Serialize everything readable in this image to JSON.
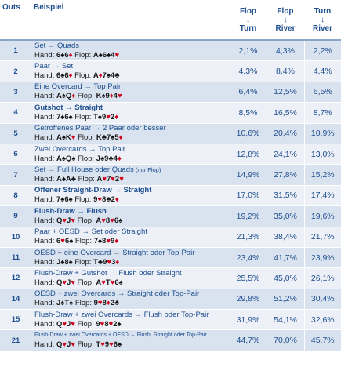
{
  "headers": {
    "outs": "Outs",
    "example": "Beispiel",
    "col1": {
      "top": "Flop",
      "arrow": "↓",
      "bottom": "Turn"
    },
    "col2": {
      "top": "Flop",
      "arrow": "↓",
      "bottom": "River"
    },
    "col3": {
      "top": "Turn",
      "arrow": "↓",
      "bottom": "River"
    }
  },
  "colors": {
    "header_text": "#1f4f8f",
    "row_odd": "#d9e2ef",
    "row_even": "#edf1f7",
    "red_suit": "#d0021b",
    "black_suit": "#111111"
  },
  "rows": [
    {
      "outs": "1",
      "line1": "Set → Quads",
      "line1_bold": false,
      "line1_small": false,
      "line1_note": "",
      "hand_label": "Hand: ",
      "hand": [
        {
          "r": "6",
          "s": "spade"
        },
        {
          "r": "6",
          "s": "diamond"
        }
      ],
      "flop_label": " Flop: ",
      "flop": [
        {
          "r": "A",
          "s": "spade"
        },
        {
          "r": "6",
          "s": "spade"
        },
        {
          "r": "4",
          "s": "heart"
        }
      ],
      "p1": "2,1%",
      "p2": "4,3%",
      "p3": "2,2%"
    },
    {
      "outs": "2",
      "line1": "Paar → Set",
      "line1_bold": false,
      "line1_small": false,
      "line1_note": "",
      "hand_label": "Hand: ",
      "hand": [
        {
          "r": "6",
          "s": "spade"
        },
        {
          "r": "6",
          "s": "diamond"
        }
      ],
      "flop_label": " Flop: ",
      "flop": [
        {
          "r": "A",
          "s": "diamond"
        },
        {
          "r": "7",
          "s": "spade"
        },
        {
          "r": "4",
          "s": "club"
        }
      ],
      "p1": "4,3%",
      "p2": "8,4%",
      "p3": "4,4%"
    },
    {
      "outs": "3",
      "line1": "Eine Overcard → Top Pair",
      "line1_bold": false,
      "line1_small": false,
      "line1_note": "",
      "hand_label": "Hand: ",
      "hand": [
        {
          "r": "A",
          "s": "spade"
        },
        {
          "r": "Q",
          "s": "diamond"
        }
      ],
      "flop_label": " Flop: ",
      "flop": [
        {
          "r": "K",
          "s": "spade"
        },
        {
          "r": "9",
          "s": "diamond"
        },
        {
          "r": "4",
          "s": "heart"
        }
      ],
      "p1": "6,4%",
      "p2": "12,5%",
      "p3": "6,5%"
    },
    {
      "outs": "4",
      "line1": "Gutshot → Straight",
      "line1_bold": true,
      "line1_small": false,
      "line1_note": "",
      "hand_label": "Hand: ",
      "hand": [
        {
          "r": "7",
          "s": "spade"
        },
        {
          "r": "6",
          "s": "spade"
        }
      ],
      "flop_label": " Flop: ",
      "flop": [
        {
          "r": "T",
          "s": "spade"
        },
        {
          "r": "9",
          "s": "heart"
        },
        {
          "r": "2",
          "s": "diamond"
        }
      ],
      "p1": "8,5%",
      "p2": "16,5%",
      "p3": "8,7%"
    },
    {
      "outs": "5",
      "line1": "Getroffenes Paar → 2 Paar oder besser",
      "line1_bold": false,
      "line1_small": false,
      "line1_note": "",
      "hand_label": "Hand: ",
      "hand": [
        {
          "r": "A",
          "s": "spade"
        },
        {
          "r": "K",
          "s": "heart"
        }
      ],
      "flop_label": " Flop: ",
      "flop": [
        {
          "r": "K",
          "s": "club"
        },
        {
          "r": "7",
          "s": "spade"
        },
        {
          "r": "5",
          "s": "diamond"
        }
      ],
      "p1": "10,6%",
      "p2": "20,4%",
      "p3": "10,9%"
    },
    {
      "outs": "6",
      "line1": "Zwei Overcards → Top Pair",
      "line1_bold": false,
      "line1_small": false,
      "line1_note": "",
      "hand_label": "Hand: ",
      "hand": [
        {
          "r": "A",
          "s": "spade"
        },
        {
          "r": "Q",
          "s": "spade"
        }
      ],
      "flop_label": " Flop: ",
      "flop": [
        {
          "r": "J",
          "s": "spade"
        },
        {
          "r": "9",
          "s": "club"
        },
        {
          "r": "4",
          "s": "diamond"
        }
      ],
      "p1": "12,8%",
      "p2": "24,1%",
      "p3": "13,0%"
    },
    {
      "outs": "7",
      "line1": "Set → Full House oder Quads",
      "line1_bold": false,
      "line1_small": false,
      "line1_note": " (nur Flop)",
      "hand_label": "Hand: ",
      "hand": [
        {
          "r": "A",
          "s": "spade"
        },
        {
          "r": "A",
          "s": "club"
        }
      ],
      "flop_label": " Flop: ",
      "flop": [
        {
          "r": "A",
          "s": "heart"
        },
        {
          "r": "7",
          "s": "heart"
        },
        {
          "r": "2",
          "s": "heart"
        }
      ],
      "p1": "14,9%",
      "p2": "27,8%",
      "p3": "15,2%"
    },
    {
      "outs": "8",
      "line1": "Offener Straight-Draw → Straight",
      "line1_bold": true,
      "line1_small": false,
      "line1_note": "",
      "hand_label": "Hand: ",
      "hand": [
        {
          "r": "7",
          "s": "spade"
        },
        {
          "r": "6",
          "s": "spade"
        }
      ],
      "flop_label": " Flop: ",
      "flop": [
        {
          "r": "9",
          "s": "heart"
        },
        {
          "r": "8",
          "s": "club"
        },
        {
          "r": "2",
          "s": "diamond"
        }
      ],
      "p1": "17,0%",
      "p2": "31,5%",
      "p3": "17,4%"
    },
    {
      "outs": "9",
      "line1": "Flush-Draw → Flush",
      "line1_bold": true,
      "line1_small": false,
      "line1_note": "",
      "hand_label": "Hand: ",
      "hand": [
        {
          "r": "Q",
          "s": "heart"
        },
        {
          "r": "J",
          "s": "heart"
        }
      ],
      "flop_label": " Flop: ",
      "flop": [
        {
          "r": "A",
          "s": "heart"
        },
        {
          "r": "8",
          "s": "heart"
        },
        {
          "r": "6",
          "s": "spade"
        }
      ],
      "p1": "19,2%",
      "p2": "35,0%",
      "p3": "19,6%"
    },
    {
      "outs": "10",
      "line1": "Paar + OESD → Set oder Straight",
      "line1_bold": false,
      "line1_small": false,
      "line1_note": "",
      "hand_label": "Hand: ",
      "hand": [
        {
          "r": "6",
          "s": "heart"
        },
        {
          "r": "6",
          "s": "spade"
        }
      ],
      "flop_label": " Flop: ",
      "flop": [
        {
          "r": "7",
          "s": "spade"
        },
        {
          "r": "8",
          "s": "heart"
        },
        {
          "r": "9",
          "s": "diamond"
        }
      ],
      "p1": "21,3%",
      "p2": "38,4%",
      "p3": "21,7%"
    },
    {
      "outs": "11",
      "line1": "OESD + eine Overcard → Straight oder Top-Pair",
      "line1_bold": false,
      "line1_small": false,
      "line1_note": "",
      "hand_label": "Hand: ",
      "hand": [
        {
          "r": "J",
          "s": "spade"
        },
        {
          "r": "8",
          "s": "spade"
        }
      ],
      "flop_label": " Flop: ",
      "flop": [
        {
          "r": "T",
          "s": "club"
        },
        {
          "r": "9",
          "s": "heart"
        },
        {
          "r": "3",
          "s": "diamond"
        }
      ],
      "p1": "23,4%",
      "p2": "41,7%",
      "p3": "23,9%"
    },
    {
      "outs": "12",
      "line1": "Flush-Draw + Gutshot → Flush oder Straight",
      "line1_bold": false,
      "line1_small": false,
      "line1_note": "",
      "hand_label": "Hand: ",
      "hand": [
        {
          "r": "Q",
          "s": "heart"
        },
        {
          "r": "J",
          "s": "heart"
        }
      ],
      "flop_label": " Flop: ",
      "flop": [
        {
          "r": "A",
          "s": "heart"
        },
        {
          "r": "T",
          "s": "heart"
        },
        {
          "r": "6",
          "s": "spade"
        }
      ],
      "p1": "25,5%",
      "p2": "45,0%",
      "p3": "26,1%"
    },
    {
      "outs": "14",
      "line1": "OESD + zwei Overcards → Straight oder Top-Pair",
      "line1_bold": false,
      "line1_small": false,
      "line1_note": "",
      "hand_label": "Hand: ",
      "hand": [
        {
          "r": "J",
          "s": "spade"
        },
        {
          "r": "T",
          "s": "spade"
        }
      ],
      "flop_label": " Flop: ",
      "flop": [
        {
          "r": "9",
          "s": "heart"
        },
        {
          "r": "8",
          "s": "diamond"
        },
        {
          "r": "2",
          "s": "club"
        }
      ],
      "p1": "29,8%",
      "p2": "51,2%",
      "p3": "30,4%"
    },
    {
      "outs": "15",
      "line1": "Flush-Draw + zwei Overcards → Flush oder Top-Pair",
      "line1_bold": false,
      "line1_small": false,
      "line1_note": "",
      "hand_label": "Hand: ",
      "hand": [
        {
          "r": "Q",
          "s": "heart"
        },
        {
          "r": "J",
          "s": "heart"
        }
      ],
      "flop_label": " Flop: ",
      "flop": [
        {
          "r": "9",
          "s": "heart"
        },
        {
          "r": "8",
          "s": "heart"
        },
        {
          "r": "2",
          "s": "spade"
        }
      ],
      "p1": "31,9%",
      "p2": "54,1%",
      "p3": "32,6%"
    },
    {
      "outs": "21",
      "line1": "Flush-Draw + zwei Overcards + OESD → Flush, Straight oder Top-Pair",
      "line1_bold": false,
      "line1_small": true,
      "line1_note": "",
      "hand_label": "Hand: ",
      "hand": [
        {
          "r": "Q",
          "s": "heart"
        },
        {
          "r": "J",
          "s": "heart"
        }
      ],
      "flop_label": " Flop: ",
      "flop": [
        {
          "r": "T",
          "s": "heart"
        },
        {
          "r": "9",
          "s": "heart"
        },
        {
          "r": "6",
          "s": "spade"
        }
      ],
      "p1": "44,7%",
      "p2": "70,0%",
      "p3": "45,7%"
    }
  ]
}
